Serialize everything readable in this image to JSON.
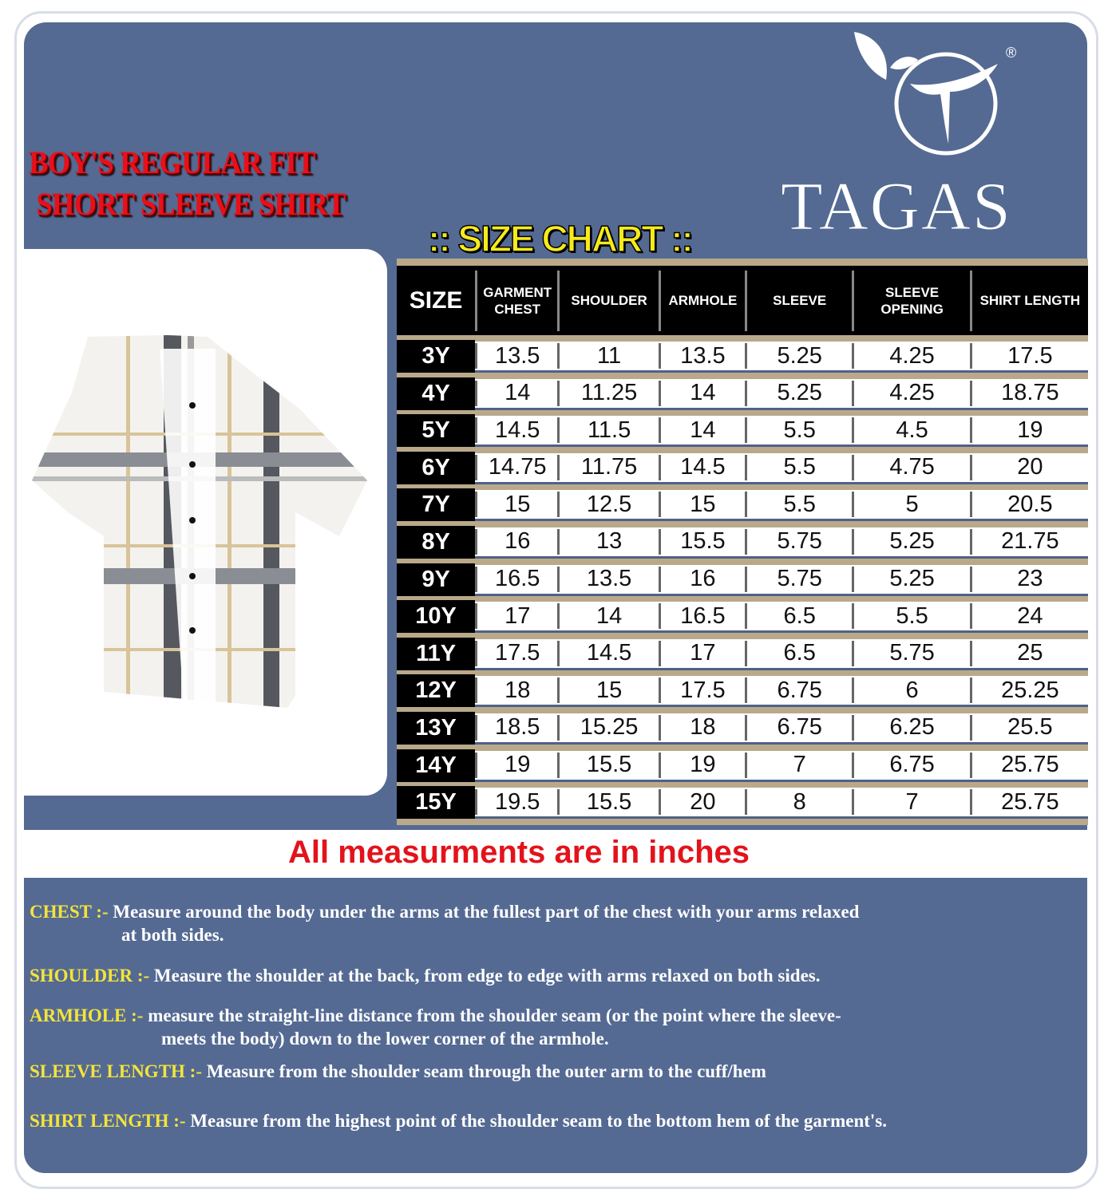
{
  "title": {
    "line1": "BOY'S REGULAR FIT",
    "line2": "SHORT SLEEVE SHIRT"
  },
  "size_chart_label": ":: SIZE CHART ::",
  "brand": {
    "name": "TAGAS",
    "registered": "®"
  },
  "colors": {
    "background": "#546a93",
    "title": "#e8101a",
    "accent": "#f7ea1c"
  },
  "table": {
    "headers": [
      "SIZE",
      "GARMENT CHEST",
      "SHOULDER",
      "ARMHOLE",
      "SLEEVE",
      "SLEEVE OPENING",
      "SHIRT LENGTH"
    ],
    "rows": [
      [
        "3Y",
        "13.5",
        "11",
        "13.5",
        "5.25",
        "4.25",
        "17.5"
      ],
      [
        "4Y",
        "14",
        "11.25",
        "14",
        "5.25",
        "4.25",
        "18.75"
      ],
      [
        "5Y",
        "14.5",
        "11.5",
        "14",
        "5.5",
        "4.5",
        "19"
      ],
      [
        "6Y",
        "14.75",
        "11.75",
        "14.5",
        "5.5",
        "4.75",
        "20"
      ],
      [
        "7Y",
        "15",
        "12.5",
        "15",
        "5.5",
        "5",
        "20.5"
      ],
      [
        "8Y",
        "16",
        "13",
        "15.5",
        "5.75",
        "5.25",
        "21.75"
      ],
      [
        "9Y",
        "16.5",
        "13.5",
        "16",
        "5.75",
        "5.25",
        "23"
      ],
      [
        "10Y",
        "17",
        "14",
        "16.5",
        "6.5",
        "5.5",
        "24"
      ],
      [
        "11Y",
        "17.5",
        "14.5",
        "17",
        "6.5",
        "5.75",
        "25"
      ],
      [
        "12Y",
        "18",
        "15",
        "17.5",
        "6.75",
        "6",
        "25.25"
      ],
      [
        "13Y",
        "18.5",
        "15.25",
        "18",
        "6.75",
        "6.25",
        "25.5"
      ],
      [
        "14Y",
        "19",
        "15.5",
        "19",
        "7",
        "6.75",
        "25.75"
      ],
      [
        "15Y",
        "19.5",
        "15.5",
        "20",
        "8",
        "7",
        "25.75"
      ]
    ]
  },
  "note": "All measurments are in inches",
  "definitions": [
    {
      "label": "CHEST :-",
      "text": " Measure around the body under the arms at the fullest part of the chest with your arms relaxed",
      "text2": "at both sides."
    },
    {
      "label": "SHOULDER :-",
      "text": " Measure the shoulder at the back, from edge to edge with arms relaxed on both sides.",
      "text2": ""
    },
    {
      "label": "ARMHOLE :-",
      "text": " measure the straight-line distance from the shoulder seam (or the point where the sleeve-",
      "text2": "meets the body) down to the lower corner of the armhole."
    },
    {
      "label": "SLEEVE LENGTH :-",
      "text": " Measure from the shoulder seam through the outer arm to the cuff/hem",
      "text2": ""
    },
    {
      "label": "SHIRT LENGTH :-",
      "text": " Measure from the highest point of the shoulder seam to the bottom hem of the garment's.",
      "text2": ""
    }
  ]
}
